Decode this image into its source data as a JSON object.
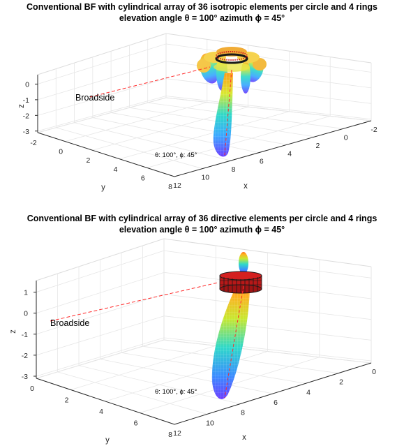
{
  "charts": [
    {
      "title_line1": "Conventional BF with cylindrical array of 36 isotropic elements per circle and 4 rings",
      "title_line2": "elevation angle θ = 100° azimuth ϕ = 45°"
    },
    {
      "title_line1": "Conventional BF with cylindrical array of 36 directive elements per circle and 4 rings",
      "title_line2": "elevation angle θ = 100° azimuth ϕ = 45°"
    }
  ],
  "chart_data": [
    {
      "type": "3d-surface",
      "title": "Conventional BF with cylindrical array of 36 isotropic elements per circle and 4 rings elevation angle θ = 100° azimuth ϕ = 45°",
      "xlabel": "x",
      "ylabel": "y",
      "zlabel": "z",
      "xticks": [
        "12",
        "10",
        "8",
        "6",
        "4",
        "2",
        "0",
        "-2"
      ],
      "yticks": [
        "-2",
        "0",
        "2",
        "4",
        "6",
        "8"
      ],
      "zticks": [
        "0",
        "-1",
        "-2",
        "-3"
      ],
      "annotations": [
        "Broadside",
        "θ: 100°, ϕ: 45°"
      ],
      "element_type": "isotropic",
      "elements_per_circle": 36,
      "rings": 4,
      "elevation_deg": 100,
      "azimuth_deg": 45
    },
    {
      "type": "3d-surface",
      "title": "Conventional BF with cylindrical array of 36 directive elements per circle and 4 rings elevation angle θ = 100° azimuth ϕ = 45°",
      "xlabel": "x",
      "ylabel": "y",
      "zlabel": "z",
      "xticks": [
        "12",
        "10",
        "8",
        "6",
        "4",
        "2",
        "0"
      ],
      "yticks": [
        "0",
        "2",
        "4",
        "6",
        "8"
      ],
      "zticks": [
        "1",
        "0",
        "-1",
        "-2",
        "-3"
      ],
      "annotations": [
        "Broadside",
        "θ: 100°, ϕ: 45°"
      ],
      "element_type": "directive",
      "elements_per_circle": 36,
      "rings": 4,
      "elevation_deg": 100,
      "azimuth_deg": 45
    }
  ]
}
